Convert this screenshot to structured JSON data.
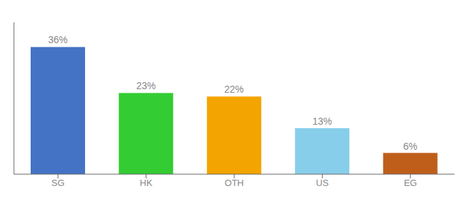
{
  "chart_data": {
    "type": "bar",
    "categories": [
      "SG",
      "HK",
      "OTH",
      "US",
      "EG"
    ],
    "values": [
      36,
      23,
      22,
      13,
      6
    ],
    "value_labels": [
      "36%",
      "23%",
      "22%",
      "13%",
      "6%"
    ],
    "colors": [
      "#4472c4",
      "#33cc33",
      "#f4a400",
      "#87ceeb",
      "#bf5e1a"
    ],
    "ylim": [
      0,
      43
    ],
    "data_labels": true,
    "tick_labels": "x",
    "grid": false
  }
}
